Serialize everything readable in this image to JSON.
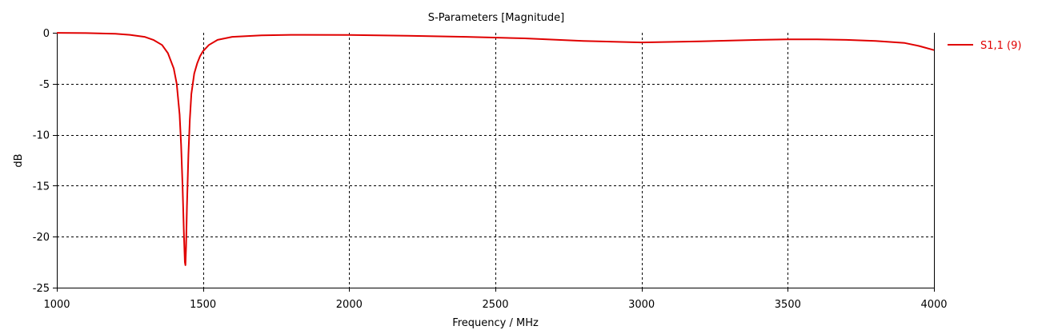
{
  "chart_data": {
    "type": "line",
    "title": "S-Parameters [Magnitude]",
    "xlabel": "Frequency / MHz",
    "ylabel": "dB",
    "xlim": [
      1000,
      4000
    ],
    "ylim": [
      -25,
      0
    ],
    "xticks": [
      1000,
      1500,
      2000,
      2500,
      3000,
      3500,
      4000
    ],
    "yticks": [
      0,
      -5,
      -10,
      -15,
      -20,
      -25
    ],
    "grid": true,
    "grid_style": "dashed",
    "legend_position": "right",
    "series": [
      {
        "name": "S1,1 (9)",
        "color": "#e00000",
        "x": [
          1000,
          1100,
          1200,
          1250,
          1300,
          1330,
          1360,
          1380,
          1400,
          1410,
          1420,
          1425,
          1430,
          1435,
          1438,
          1440,
          1442,
          1445,
          1450,
          1455,
          1460,
          1470,
          1480,
          1490,
          1500,
          1520,
          1550,
          1600,
          1700,
          1800,
          2000,
          2200,
          2400,
          2600,
          2800,
          3000,
          3200,
          3400,
          3500,
          3600,
          3700,
          3800,
          3900,
          3950,
          4000
        ],
        "y": [
          -0.01,
          -0.03,
          -0.1,
          -0.2,
          -0.4,
          -0.7,
          -1.2,
          -2.0,
          -3.5,
          -5.0,
          -8.0,
          -11.0,
          -15.0,
          -20.0,
          -22.5,
          -22.8,
          -21.0,
          -17.0,
          -12.0,
          -8.5,
          -6.0,
          -4.0,
          -3.0,
          -2.3,
          -1.8,
          -1.2,
          -0.7,
          -0.4,
          -0.25,
          -0.2,
          -0.22,
          -0.3,
          -0.4,
          -0.55,
          -0.8,
          -0.95,
          -0.85,
          -0.7,
          -0.65,
          -0.65,
          -0.7,
          -0.8,
          -1.0,
          -1.3,
          -1.7
        ]
      }
    ]
  }
}
